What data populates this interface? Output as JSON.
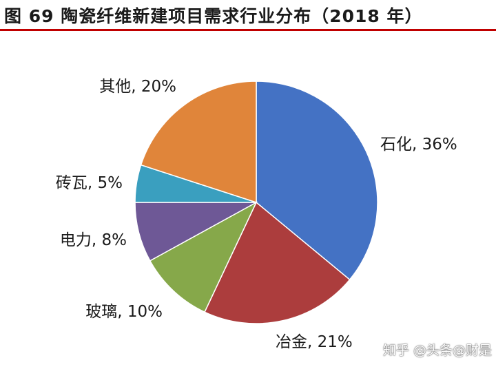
{
  "figure": {
    "title": "图 69 陶瓷纤维新建项目需求行业分布（2018 年）"
  },
  "watermark": "知乎 @头条@财是",
  "chart_data": {
    "type": "pie",
    "title": "",
    "unit": "%",
    "start": "12 o'clock, clockwise",
    "slices": [
      {
        "label": "石化",
        "value": 36,
        "display": "石化, 36%",
        "color": "#4472c4"
      },
      {
        "label": "冶金",
        "value": 21,
        "display": "冶金, 21%",
        "color": "#ac3d3d"
      },
      {
        "label": "玻璃",
        "value": 10,
        "display": "玻璃, 10%",
        "color": "#86a84a"
      },
      {
        "label": "电力",
        "value": 8,
        "display": "电力, 8%",
        "color": "#6e5896"
      },
      {
        "label": "砖瓦",
        "value": 5,
        "display": "砖瓦, 5%",
        "color": "#3a9fbf"
      },
      {
        "label": "其他",
        "value": 20,
        "display": "其他, 20%",
        "color": "#e0853a"
      }
    ]
  }
}
